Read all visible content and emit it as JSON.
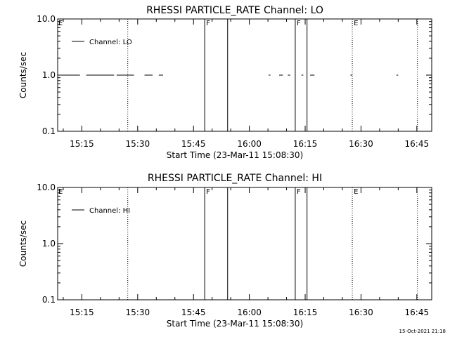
{
  "chart_data": [
    {
      "type": "line",
      "title": "RHESSI PARTICLE_RATE Channel: LO",
      "xlabel": "Start Time (23-Mar-11 15:08:30)",
      "ylabel": "Counts/sec",
      "xlim": [
        "15:08:30",
        "16:49:00"
      ],
      "ylim": [
        0.1,
        10.0
      ],
      "yscale": "log",
      "xticks": [
        "15:15",
        "15:30",
        "15:45",
        "16:00",
        "16:15",
        "16:30",
        "16:45"
      ],
      "yticks": [
        "0.1",
        "1.0",
        "10.0"
      ],
      "legend": {
        "label": "Channel: LO",
        "placement": "top-left"
      },
      "series": [
        {
          "name": "Channel: LO",
          "style": "dashed-segments",
          "segments": [
            [
              "15:08:35",
              "15:14:30"
            ],
            [
              "15:16:10",
              "15:23:40"
            ],
            [
              "15:24:20",
              "15:29:00"
            ],
            [
              "15:31:50",
              "15:34:00"
            ],
            [
              "15:35:40",
              "15:36:50"
            ],
            [
              "16:05:10",
              "16:05:40"
            ],
            [
              "16:08:00",
              "16:09:00"
            ],
            [
              "16:10:20",
              "16:11:00"
            ],
            [
              "16:14:00",
              "16:14:30"
            ],
            [
              "16:16:20",
              "16:17:30"
            ],
            [
              "16:27:10",
              "16:27:40"
            ],
            [
              "16:39:30",
              "16:40:00"
            ]
          ],
          "y": 1.0
        }
      ],
      "vlines": [
        {
          "time": "15:27:20",
          "style": "dotted",
          "label": ""
        },
        {
          "time": "15:48:00",
          "style": "solid",
          "label": "F"
        },
        {
          "time": "15:54:10",
          "style": "solid",
          "label": ""
        },
        {
          "time": "16:12:20",
          "style": "solid",
          "label": "F"
        },
        {
          "time": "16:15:30",
          "style": "solid",
          "label": ""
        },
        {
          "time": "16:27:40",
          "style": "dotted",
          "label": "E"
        },
        {
          "time": "16:45:10",
          "style": "dotted",
          "label": ""
        }
      ],
      "edge_marker": "E"
    },
    {
      "type": "line",
      "title": "RHESSI PARTICLE_RATE Channel: HI",
      "xlabel": "Start Time (23-Mar-11 15:08:30)",
      "ylabel": "Counts/sec",
      "xlim": [
        "15:08:30",
        "16:49:00"
      ],
      "ylim": [
        0.1,
        10.0
      ],
      "yscale": "log",
      "xticks": [
        "15:15",
        "15:30",
        "15:45",
        "16:00",
        "16:15",
        "16:30",
        "16:45"
      ],
      "yticks": [
        "0.1",
        "1.0",
        "10.0"
      ],
      "legend": {
        "label": "Channel: HI",
        "placement": "top-left"
      },
      "series": [
        {
          "name": "Channel: HI",
          "style": "none",
          "segments": [],
          "y": 1.0
        }
      ],
      "vlines": [
        {
          "time": "15:27:20",
          "style": "dotted",
          "label": ""
        },
        {
          "time": "15:48:00",
          "style": "solid",
          "label": "F"
        },
        {
          "time": "15:54:10",
          "style": "solid",
          "label": ""
        },
        {
          "time": "16:12:20",
          "style": "solid",
          "label": "F"
        },
        {
          "time": "16:15:30",
          "style": "solid",
          "label": ""
        },
        {
          "time": "16:27:40",
          "style": "dotted",
          "label": "E"
        },
        {
          "time": "16:45:10",
          "style": "dotted",
          "label": ""
        }
      ],
      "edge_marker": "E"
    }
  ],
  "footer": {
    "timestamp": "15-Oct-2021 21:18"
  }
}
